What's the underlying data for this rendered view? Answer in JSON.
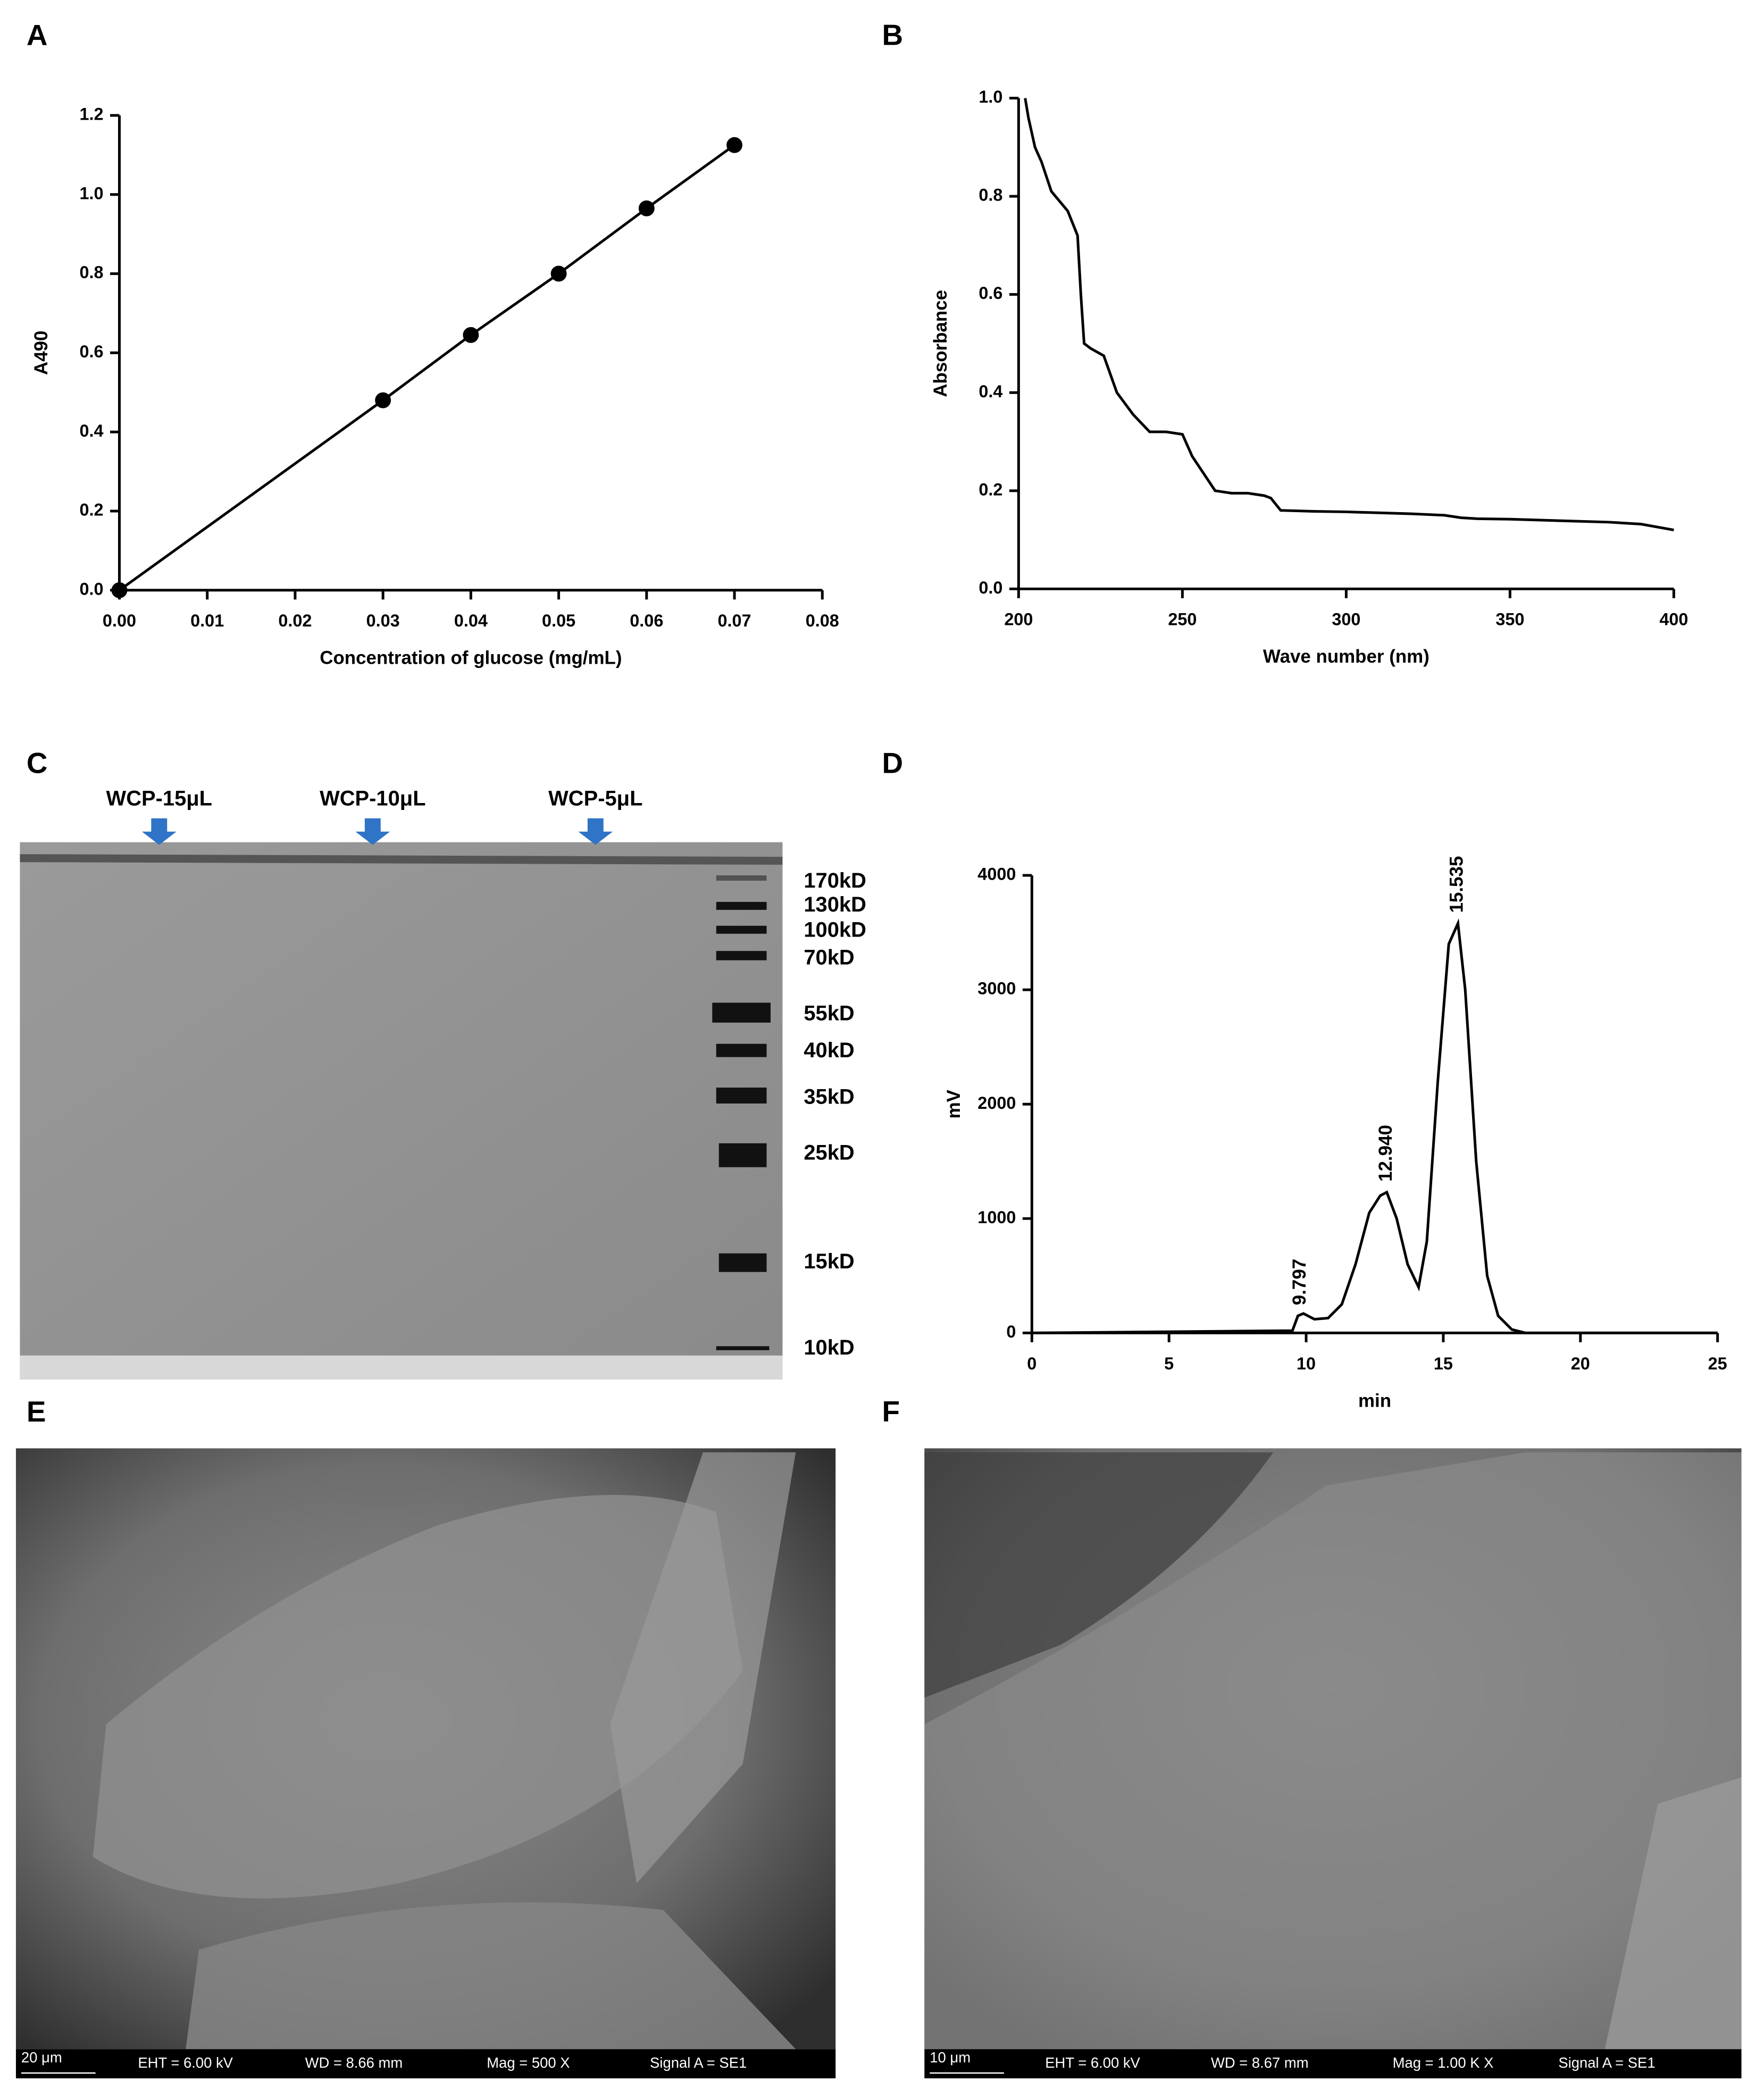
{
  "panel_labels": [
    "A",
    "B",
    "C",
    "D",
    "E",
    "F"
  ],
  "chart_data": [
    {
      "type": "line",
      "markers": true,
      "x": [
        0,
        0.03,
        0.04,
        0.05,
        0.06,
        0.07
      ],
      "series": [
        {
          "color": "#000000",
          "values": [
            0,
            0.48,
            0.645,
            0.8,
            0.965,
            1.125
          ]
        }
      ],
      "xlim": [
        0,
        0.08
      ],
      "ylim": [
        0,
        1.2
      ],
      "xticks": [
        {
          "value": 0,
          "label": "0.00"
        },
        0.01,
        0.02,
        0.03,
        0.04,
        0.05,
        0.06,
        0.07,
        0.08
      ],
      "yticks": [
        {
          "value": 0,
          "label": "0.0"
        },
        0.2,
        0.4,
        0.6,
        0.8,
        {
          "value": 1,
          "label": "1.0"
        },
        1.2
      ],
      "xlabel": "Concentration of glucose (mg/mL)",
      "ylabel": "A490"
    },
    {
      "type": "line",
      "markers": false,
      "x": [
        202,
        203,
        205,
        207,
        210,
        215,
        218,
        219,
        220,
        222,
        226,
        230,
        235,
        240,
        245,
        250,
        253,
        257,
        260,
        265,
        270,
        275,
        277,
        280,
        290,
        300,
        310,
        320,
        330,
        335,
        340,
        350,
        360,
        370,
        380,
        390,
        395,
        400
      ],
      "series": [
        {
          "color": "#000000",
          "values": [
            1.0,
            0.96,
            0.9,
            0.87,
            0.81,
            0.77,
            0.72,
            0.6,
            0.5,
            0.49,
            0.475,
            0.4,
            0.355,
            0.32,
            0.32,
            0.315,
            0.27,
            0.23,
            0.2,
            0.195,
            0.195,
            0.19,
            0.185,
            0.16,
            0.158,
            0.157,
            0.155,
            0.153,
            0.15,
            0.145,
            0.143,
            0.142,
            0.14,
            0.138,
            0.136,
            0.132,
            0.126,
            0.12
          ]
        }
      ],
      "xlim": [
        200,
        400
      ],
      "ylim": [
        0,
        1
      ],
      "xticks": [
        200,
        250,
        300,
        350,
        400
      ],
      "yticks": [
        {
          "value": 0,
          "label": "0.0"
        },
        0.2,
        0.4,
        0.6,
        0.8,
        {
          "value": 1,
          "label": "1.0"
        }
      ],
      "xlabel": "Wave number (nm)",
      "ylabel": "Absorbance"
    },
    {
      "type": "line",
      "markers": false,
      "x": [
        0,
        9.5,
        9.7,
        9.9,
        10.3,
        10.8,
        11.3,
        11.8,
        12.3,
        12.7,
        12.94,
        13.3,
        13.7,
        14.1,
        14.4,
        14.8,
        15.2,
        15.535,
        15.8,
        16.2,
        16.6,
        17,
        17.5,
        18,
        25
      ],
      "series": [
        {
          "color": "#000000",
          "values": [
            0,
            20,
            150,
            170,
            120,
            130,
            250,
            600,
            1050,
            1200,
            1230,
            1000,
            600,
            400,
            800,
            2200,
            3400,
            3580,
            3000,
            1500,
            500,
            150,
            30,
            0,
            0
          ]
        }
      ],
      "peak_labels": [
        {
          "value": 9.797,
          "label": "9.797"
        },
        {
          "value": 12.94,
          "label": "12.940"
        },
        {
          "value": 15.535,
          "label": "15.535"
        }
      ],
      "xlim": [
        0,
        25
      ],
      "ylim": [
        0,
        4000
      ],
      "xticks": [
        0,
        5,
        10,
        15,
        20,
        25
      ],
      "yticks": [
        0,
        1000,
        2000,
        3000,
        4000
      ],
      "xlabel": "min",
      "ylabel": "mV"
    }
  ],
  "gel": {
    "lanes": [
      "WCP-15μL",
      "WCP-10μL",
      "WCP-5μL"
    ],
    "markers": [
      "170kD",
      "130kD",
      "100kD",
      "70kD",
      "55kD",
      "40kD",
      "35kD",
      "25kD",
      "15kD",
      "10kD"
    ]
  },
  "sem": [
    {
      "scale": "20 μm",
      "info": [
        "EHT =  6.00 kV",
        "WD = 8.66 mm",
        "Mag =   500 X",
        "Signal A = SE1"
      ]
    },
    {
      "scale": "10 μm",
      "info": [
        "EHT =  6.00 kV",
        "WD = 8.67 mm",
        "Mag =  1.00 K X",
        "Signal A = SE1"
      ]
    }
  ]
}
